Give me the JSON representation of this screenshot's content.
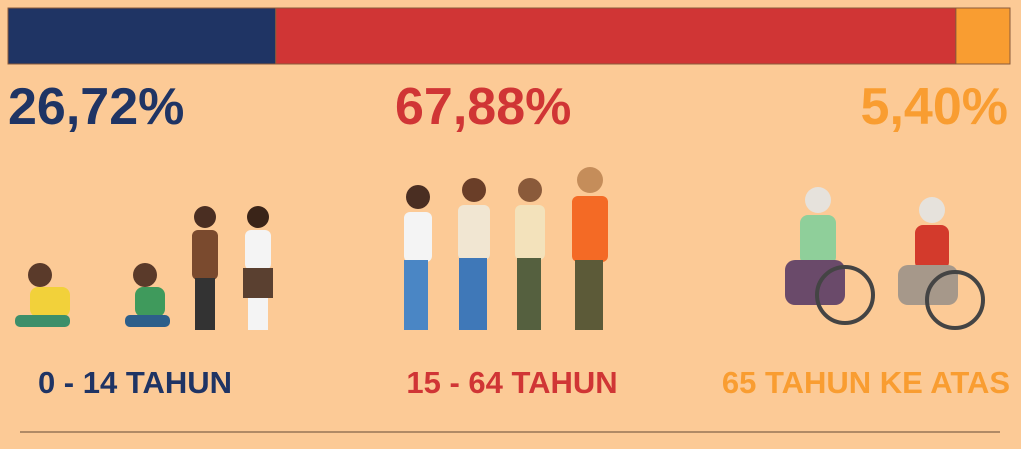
{
  "chart_data": {
    "type": "stacked-bar",
    "xlim": [
      0,
      100
    ],
    "series": [
      {
        "name": "0 - 14 TAHUN",
        "color": "#1f3464",
        "values": [
          26.72
        ],
        "value_labels": [
          "26,72%"
        ]
      },
      {
        "name": "15 - 64 TAHUN",
        "color": "#d03535",
        "values": [
          67.88
        ],
        "value_labels": [
          "67,88%"
        ]
      },
      {
        "name": "65 TAHUN KE ATAS",
        "color": "#f99d31",
        "values": [
          5.4
        ],
        "value_labels": [
          "5,40%"
        ]
      }
    ]
  }
}
